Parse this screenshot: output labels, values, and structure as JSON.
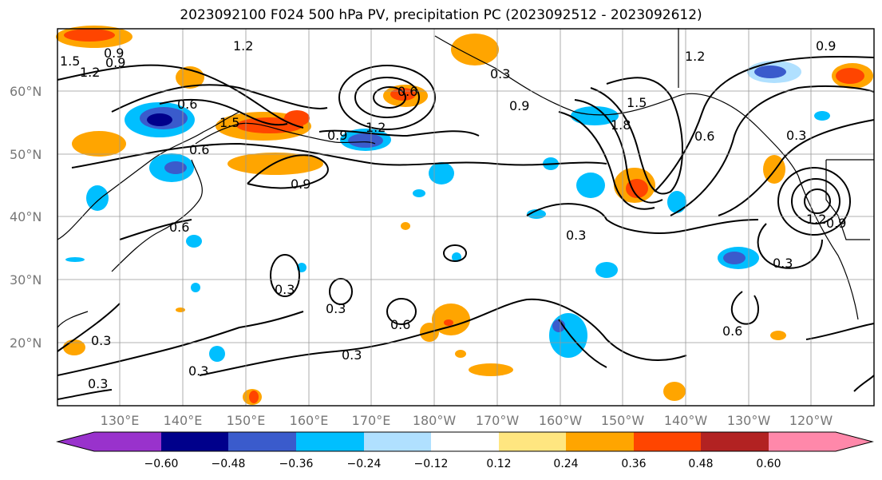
{
  "title": "2023092100 F024 500 hPa PV, precipitation PC (2023092512 - 2023092612)",
  "map": {
    "lat_labels": [
      "60°N",
      "50°N",
      "40°N",
      "30°N",
      "20°N"
    ],
    "lon_labels": [
      "130°E",
      "140°E",
      "150°E",
      "160°E",
      "170°E",
      "180°W",
      "170°W",
      "160°W",
      "150°W",
      "140°W",
      "130°W",
      "120°W"
    ],
    "contour_labels": [
      "1.2",
      "1.5",
      "1.2",
      "0.9",
      "0.6",
      "1.5",
      "0.6",
      "0.9",
      "1.2",
      "0.9",
      "0.3",
      "0.9",
      "0.6",
      "0.9",
      "1.5",
      "1.8",
      "0.6",
      "0.3",
      "0.9",
      "1.2",
      "0.6",
      "0.3",
      "0.3",
      "0.3",
      "0.6",
      "0.3",
      "0.3",
      "0.3",
      "0.3",
      "0.6",
      "0.3",
      "0.9",
      "1.2"
    ]
  },
  "colorbar": {
    "ticks": [
      "−0.60",
      "−0.48",
      "−0.36",
      "−0.24",
      "−0.12",
      "0.12",
      "0.24",
      "0.36",
      "0.48",
      "0.60"
    ],
    "colors": [
      "#9932cc",
      "#00008b",
      "#3a5bcc",
      "#00bfff",
      "#b0e0ff",
      "#ffffff",
      "#ffe680",
      "#ffa500",
      "#ff4500",
      "#b22222",
      "#ff88aa"
    ]
  },
  "colors": {
    "neg_light": "#b0e0ff",
    "neg_mid": "#00bfff",
    "neg_dark": "#3a5bcc",
    "pos_light": "#ffe680",
    "pos_mid": "#ffa500",
    "pos_dark": "#ff4500",
    "contour": "#000000",
    "grid": "#999999"
  }
}
